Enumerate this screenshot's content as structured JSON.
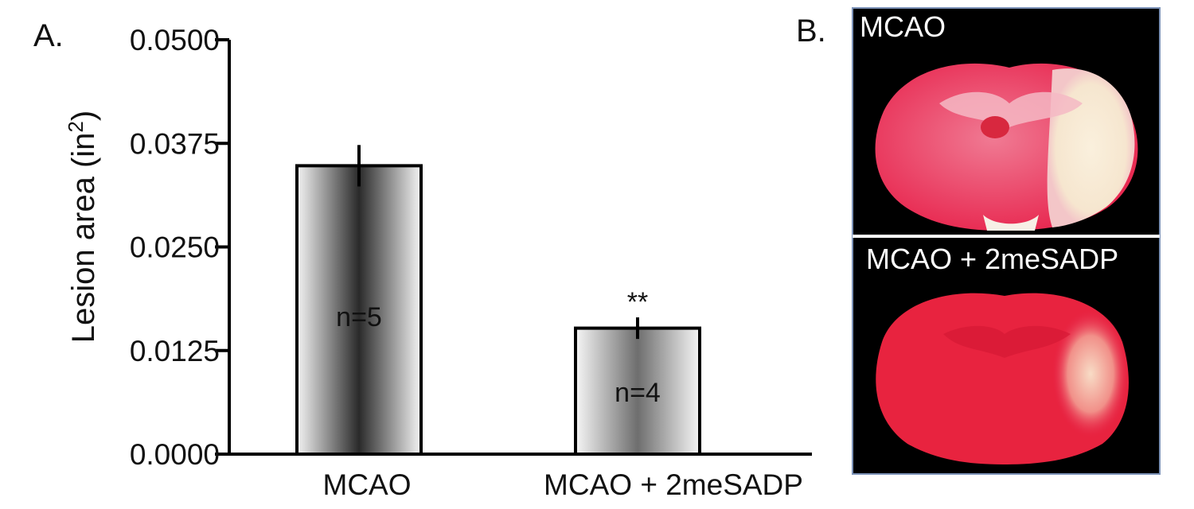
{
  "panel_a_label": "A.",
  "panel_b_label": "B.",
  "chart_data": {
    "type": "bar",
    "categories": [
      "MCAO",
      "MCAO + 2meSADP"
    ],
    "values": [
      0.0348,
      0.0152
    ],
    "errors": [
      0.0025,
      0.0013
    ],
    "n_labels": [
      "n=5",
      "n=4"
    ],
    "significance": [
      "",
      "**"
    ],
    "ylabel_main": "Lesion area (in",
    "ylabel_sup": "2",
    "ylabel_end": ")",
    "ylim": [
      0,
      0.05
    ],
    "yticks": [
      "0.0000",
      "0.0125",
      "0.0250",
      "0.0375",
      "0.0500"
    ],
    "ytick_values": [
      0,
      0.0125,
      0.025,
      0.0375,
      0.05
    ],
    "title": "",
    "xlabel": ""
  },
  "brain_images": [
    {
      "caption": "MCAO"
    },
    {
      "caption": "MCAO + 2meSADP"
    }
  ],
  "colors": {
    "tissue_red": "#e8264e",
    "lesion_pale": "#f7ead8",
    "photo_bg": "#000000",
    "photo_border": "#7d93b8"
  }
}
